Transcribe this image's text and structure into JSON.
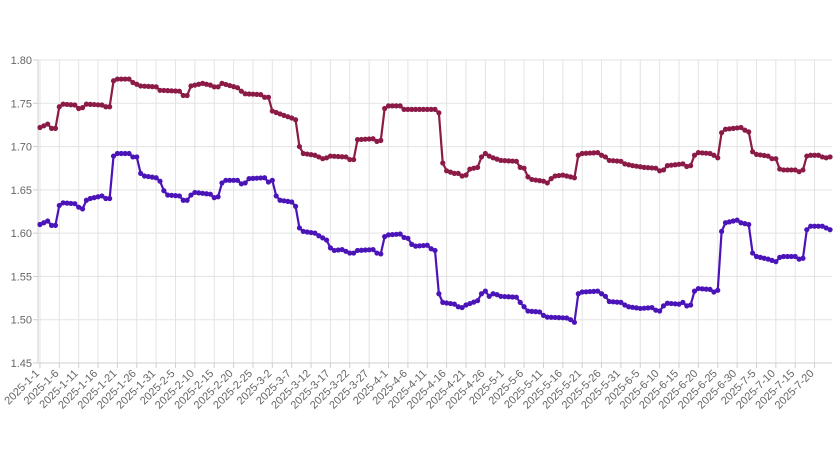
{
  "chart_data": {
    "type": "line",
    "title": "",
    "xlabel": "",
    "ylabel": "",
    "ylim": [
      1.45,
      1.8
    ],
    "y_ticks": [
      "1.45",
      "1.50",
      "1.55",
      "1.60",
      "1.65",
      "1.70",
      "1.75",
      "1.80"
    ],
    "x_start": "2025-1-1",
    "x_end": "2025-7-24",
    "x_tick_labels": [
      "2025-1-1",
      "2025-1-6",
      "2025-1-11",
      "2025-1-16",
      "2025-1-21",
      "2025-1-26",
      "2025-1-31",
      "2025-2-5",
      "2025-2-10",
      "2025-2-15",
      "2025-2-20",
      "2025-2-25",
      "2025-3-2",
      "2025-3-7",
      "2025-3-12",
      "2025-3-17",
      "2025-3-22",
      "2025-3-27",
      "2025-4-1",
      "2025-4-6",
      "2025-4-11",
      "2025-4-16",
      "2025-4-21",
      "2025-4-26",
      "2025-5-1",
      "2025-5-6",
      "2025-5-11",
      "2025-5-16",
      "2025-5-21",
      "2025-5-26",
      "2025-5-31",
      "2025-6-5",
      "2025-6-10",
      "2025-6-15",
      "2025-6-20",
      "2025-6-25",
      "2025-6-30",
      "2025-7-5",
      "2025-7-10",
      "2025-7-15",
      "2025-7-20"
    ],
    "grid": true,
    "series": [
      {
        "color": "#8b1a46",
        "knots": [
          [
            "2025-1-1",
            1.722
          ],
          [
            "2025-1-3",
            1.726
          ],
          [
            "2025-1-4",
            1.721
          ],
          [
            "2025-1-5",
            1.721
          ],
          [
            "2025-1-6",
            1.746
          ],
          [
            "2025-1-7",
            1.749
          ],
          [
            "2025-1-10",
            1.748
          ],
          [
            "2025-1-11",
            1.744
          ],
          [
            "2025-1-12",
            1.745
          ],
          [
            "2025-1-13",
            1.749
          ],
          [
            "2025-1-17",
            1.748
          ],
          [
            "2025-1-18",
            1.746
          ],
          [
            "2025-1-19",
            1.746
          ],
          [
            "2025-1-20",
            1.776
          ],
          [
            "2025-1-21",
            1.778
          ],
          [
            "2025-1-24",
            1.778
          ],
          [
            "2025-1-25",
            1.774
          ],
          [
            "2025-1-26",
            1.772
          ],
          [
            "2025-1-27",
            1.77
          ],
          [
            "2025-1-31",
            1.769
          ],
          [
            "2025-2-1",
            1.765
          ],
          [
            "2025-2-6",
            1.764
          ],
          [
            "2025-2-7",
            1.759
          ],
          [
            "2025-2-8",
            1.759
          ],
          [
            "2025-2-9",
            1.77
          ],
          [
            "2025-2-12",
            1.773
          ],
          [
            "2025-2-14",
            1.771
          ],
          [
            "2025-2-15",
            1.769
          ],
          [
            "2025-2-16",
            1.769
          ],
          [
            "2025-2-17",
            1.773
          ],
          [
            "2025-2-21",
            1.768
          ],
          [
            "2025-2-22",
            1.764
          ],
          [
            "2025-2-23",
            1.761
          ],
          [
            "2025-2-27",
            1.76
          ],
          [
            "2025-2-28",
            1.757
          ],
          [
            "2025-3-1",
            1.757
          ],
          [
            "2025-3-2",
            1.741
          ],
          [
            "2025-3-5",
            1.736
          ],
          [
            "2025-3-7",
            1.733
          ],
          [
            "2025-3-8",
            1.731
          ],
          [
            "2025-3-9",
            1.7
          ],
          [
            "2025-3-10",
            1.692
          ],
          [
            "2025-3-13",
            1.69
          ],
          [
            "2025-3-15",
            1.686
          ],
          [
            "2025-3-16",
            1.687
          ],
          [
            "2025-3-17",
            1.689
          ],
          [
            "2025-3-21",
            1.688
          ],
          [
            "2025-3-22",
            1.685
          ],
          [
            "2025-3-23",
            1.685
          ],
          [
            "2025-3-24",
            1.708
          ],
          [
            "2025-3-28",
            1.709
          ],
          [
            "2025-3-29",
            1.706
          ],
          [
            "2025-3-30",
            1.707
          ],
          [
            "2025-3-31",
            1.744
          ],
          [
            "2025-4-1",
            1.747
          ],
          [
            "2025-4-4",
            1.747
          ],
          [
            "2025-4-5",
            1.743
          ],
          [
            "2025-4-13",
            1.743
          ],
          [
            "2025-4-14",
            1.739
          ],
          [
            "2025-4-15",
            1.681
          ],
          [
            "2025-4-16",
            1.672
          ],
          [
            "2025-4-18",
            1.669
          ],
          [
            "2025-4-19",
            1.669
          ],
          [
            "2025-4-20",
            1.666
          ],
          [
            "2025-4-21",
            1.667
          ],
          [
            "2025-4-22",
            1.674
          ],
          [
            "2025-4-24",
            1.676
          ],
          [
            "2025-4-25",
            1.688
          ],
          [
            "2025-4-26",
            1.692
          ],
          [
            "2025-4-27",
            1.689
          ],
          [
            "2025-4-28",
            1.687
          ],
          [
            "2025-4-30",
            1.684
          ],
          [
            "2025-5-4",
            1.683
          ],
          [
            "2025-5-5",
            1.676
          ],
          [
            "2025-5-6",
            1.675
          ],
          [
            "2025-5-7",
            1.665
          ],
          [
            "2025-5-8",
            1.662
          ],
          [
            "2025-5-11",
            1.66
          ],
          [
            "2025-5-12",
            1.658
          ],
          [
            "2025-5-13",
            1.663
          ],
          [
            "2025-5-14",
            1.666
          ],
          [
            "2025-5-16",
            1.667
          ],
          [
            "2025-5-18",
            1.665
          ],
          [
            "2025-5-19",
            1.664
          ],
          [
            "2025-5-20",
            1.69
          ],
          [
            "2025-5-21",
            1.692
          ],
          [
            "2025-5-25",
            1.693
          ],
          [
            "2025-5-26",
            1.69
          ],
          [
            "2025-5-27",
            1.688
          ],
          [
            "2025-5-28",
            1.684
          ],
          [
            "2025-5-31",
            1.683
          ],
          [
            "2025-6-1",
            1.68
          ],
          [
            "2025-6-3",
            1.678
          ],
          [
            "2025-6-6",
            1.676
          ],
          [
            "2025-6-9",
            1.675
          ],
          [
            "2025-6-10",
            1.672
          ],
          [
            "2025-6-11",
            1.673
          ],
          [
            "2025-6-12",
            1.678
          ],
          [
            "2025-6-14",
            1.679
          ],
          [
            "2025-6-16",
            1.68
          ],
          [
            "2025-6-17",
            1.677
          ],
          [
            "2025-6-18",
            1.678
          ],
          [
            "2025-6-19",
            1.69
          ],
          [
            "2025-6-20",
            1.693
          ],
          [
            "2025-6-23",
            1.692
          ],
          [
            "2025-6-24",
            1.69
          ],
          [
            "2025-6-25",
            1.687
          ],
          [
            "2025-6-26",
            1.716
          ],
          [
            "2025-6-27",
            1.72
          ],
          [
            "2025-7-1",
            1.722
          ],
          [
            "2025-7-2",
            1.719
          ],
          [
            "2025-7-3",
            1.717
          ],
          [
            "2025-7-4",
            1.694
          ],
          [
            "2025-7-5",
            1.691
          ],
          [
            "2025-7-8",
            1.689
          ],
          [
            "2025-7-9",
            1.686
          ],
          [
            "2025-7-10",
            1.686
          ],
          [
            "2025-7-11",
            1.674
          ],
          [
            "2025-7-12",
            1.673
          ],
          [
            "2025-7-15",
            1.673
          ],
          [
            "2025-7-16",
            1.671
          ],
          [
            "2025-7-17",
            1.673
          ],
          [
            "2025-7-18",
            1.689
          ],
          [
            "2025-7-19",
            1.69
          ],
          [
            "2025-7-21",
            1.69
          ],
          [
            "2025-7-22",
            1.688
          ],
          [
            "2025-7-23",
            1.687
          ],
          [
            "2025-7-24",
            1.688
          ]
        ]
      },
      {
        "color": "#4b14b8",
        "knots": [
          [
            "2025-1-1",
            1.61
          ],
          [
            "2025-1-3",
            1.614
          ],
          [
            "2025-1-4",
            1.609
          ],
          [
            "2025-1-5",
            1.609
          ],
          [
            "2025-1-6",
            1.632
          ],
          [
            "2025-1-7",
            1.635
          ],
          [
            "2025-1-10",
            1.634
          ],
          [
            "2025-1-11",
            1.63
          ],
          [
            "2025-1-12",
            1.628
          ],
          [
            "2025-1-13",
            1.638
          ],
          [
            "2025-1-14",
            1.64
          ],
          [
            "2025-1-17",
            1.643
          ],
          [
            "2025-1-18",
            1.64
          ],
          [
            "2025-1-19",
            1.64
          ],
          [
            "2025-1-20",
            1.689
          ],
          [
            "2025-1-21",
            1.692
          ],
          [
            "2025-1-24",
            1.692
          ],
          [
            "2025-1-25",
            1.688
          ],
          [
            "2025-1-26",
            1.688
          ],
          [
            "2025-1-27",
            1.669
          ],
          [
            "2025-1-28",
            1.666
          ],
          [
            "2025-1-31",
            1.664
          ],
          [
            "2025-2-1",
            1.66
          ],
          [
            "2025-2-2",
            1.649
          ],
          [
            "2025-2-3",
            1.644
          ],
          [
            "2025-2-6",
            1.643
          ],
          [
            "2025-2-7",
            1.638
          ],
          [
            "2025-2-8",
            1.638
          ],
          [
            "2025-2-9",
            1.644
          ],
          [
            "2025-2-10",
            1.647
          ],
          [
            "2025-2-14",
            1.645
          ],
          [
            "2025-2-15",
            1.641
          ],
          [
            "2025-2-16",
            1.642
          ],
          [
            "2025-2-17",
            1.658
          ],
          [
            "2025-2-18",
            1.661
          ],
          [
            "2025-2-21",
            1.661
          ],
          [
            "2025-2-22",
            1.657
          ],
          [
            "2025-2-23",
            1.658
          ],
          [
            "2025-2-24",
            1.663
          ],
          [
            "2025-2-28",
            1.664
          ],
          [
            "2025-3-1",
            1.659
          ],
          [
            "2025-3-2",
            1.661
          ],
          [
            "2025-3-3",
            1.643
          ],
          [
            "2025-3-4",
            1.638
          ],
          [
            "2025-3-7",
            1.636
          ],
          [
            "2025-3-8",
            1.631
          ],
          [
            "2025-3-9",
            1.606
          ],
          [
            "2025-3-10",
            1.602
          ],
          [
            "2025-3-13",
            1.6
          ],
          [
            "2025-3-14",
            1.597
          ],
          [
            "2025-3-16",
            1.592
          ],
          [
            "2025-3-17",
            1.583
          ],
          [
            "2025-3-18",
            1.58
          ],
          [
            "2025-3-20",
            1.581
          ],
          [
            "2025-3-22",
            1.577
          ],
          [
            "2025-3-23",
            1.577
          ],
          [
            "2025-3-24",
            1.58
          ],
          [
            "2025-3-28",
            1.581
          ],
          [
            "2025-3-29",
            1.577
          ],
          [
            "2025-3-30",
            1.576
          ],
          [
            "2025-3-31",
            1.596
          ],
          [
            "2025-4-1",
            1.598
          ],
          [
            "2025-4-4",
            1.599
          ],
          [
            "2025-4-5",
            1.595
          ],
          [
            "2025-4-6",
            1.594
          ],
          [
            "2025-4-7",
            1.587
          ],
          [
            "2025-4-8",
            1.585
          ],
          [
            "2025-4-11",
            1.586
          ],
          [
            "2025-4-12",
            1.582
          ],
          [
            "2025-4-13",
            1.58
          ],
          [
            "2025-4-14",
            1.53
          ],
          [
            "2025-4-15",
            1.52
          ],
          [
            "2025-4-18",
            1.518
          ],
          [
            "2025-4-19",
            1.515
          ],
          [
            "2025-4-20",
            1.514
          ],
          [
            "2025-4-21",
            1.517
          ],
          [
            "2025-4-24",
            1.522
          ],
          [
            "2025-4-25",
            1.53
          ],
          [
            "2025-4-26",
            1.533
          ],
          [
            "2025-4-27",
            1.527
          ],
          [
            "2025-4-28",
            1.53
          ],
          [
            "2025-4-29",
            1.529
          ],
          [
            "2025-4-30",
            1.527
          ],
          [
            "2025-5-4",
            1.526
          ],
          [
            "2025-5-5",
            1.52
          ],
          [
            "2025-5-6",
            1.515
          ],
          [
            "2025-5-7",
            1.51
          ],
          [
            "2025-5-10",
            1.509
          ],
          [
            "2025-5-11",
            1.505
          ],
          [
            "2025-5-12",
            1.503
          ],
          [
            "2025-5-17",
            1.502
          ],
          [
            "2025-5-18",
            1.5
          ],
          [
            "2025-5-19",
            1.497
          ],
          [
            "2025-5-20",
            1.53
          ],
          [
            "2025-5-21",
            1.532
          ],
          [
            "2025-5-25",
            1.533
          ],
          [
            "2025-5-26",
            1.53
          ],
          [
            "2025-5-27",
            1.527
          ],
          [
            "2025-5-28",
            1.521
          ],
          [
            "2025-5-31",
            1.52
          ],
          [
            "2025-6-1",
            1.517
          ],
          [
            "2025-6-2",
            1.515
          ],
          [
            "2025-6-5",
            1.513
          ],
          [
            "2025-6-8",
            1.514
          ],
          [
            "2025-6-9",
            1.511
          ],
          [
            "2025-6-10",
            1.51
          ],
          [
            "2025-6-11",
            1.516
          ],
          [
            "2025-6-12",
            1.519
          ],
          [
            "2025-6-15",
            1.518
          ],
          [
            "2025-6-16",
            1.52
          ],
          [
            "2025-6-17",
            1.516
          ],
          [
            "2025-6-18",
            1.517
          ],
          [
            "2025-6-19",
            1.533
          ],
          [
            "2025-6-20",
            1.536
          ],
          [
            "2025-6-23",
            1.535
          ],
          [
            "2025-6-24",
            1.532
          ],
          [
            "2025-6-25",
            1.534
          ],
          [
            "2025-6-26",
            1.602
          ],
          [
            "2025-6-27",
            1.612
          ],
          [
            "2025-6-30",
            1.615
          ],
          [
            "2025-7-1",
            1.612
          ],
          [
            "2025-7-3",
            1.61
          ],
          [
            "2025-7-4",
            1.577
          ],
          [
            "2025-7-5",
            1.573
          ],
          [
            "2025-7-8",
            1.57
          ],
          [
            "2025-7-10",
            1.567
          ],
          [
            "2025-7-11",
            1.572
          ],
          [
            "2025-7-12",
            1.573
          ],
          [
            "2025-7-15",
            1.573
          ],
          [
            "2025-7-16",
            1.57
          ],
          [
            "2025-7-17",
            1.571
          ],
          [
            "2025-7-18",
            1.604
          ],
          [
            "2025-7-19",
            1.608
          ],
          [
            "2025-7-22",
            1.608
          ],
          [
            "2025-7-23",
            1.606
          ],
          [
            "2025-7-24",
            1.604
          ],
          [
            "2025-7-25",
            1.6
          ],
          [
            "2025-7-27",
            1.598
          ]
        ]
      }
    ]
  }
}
